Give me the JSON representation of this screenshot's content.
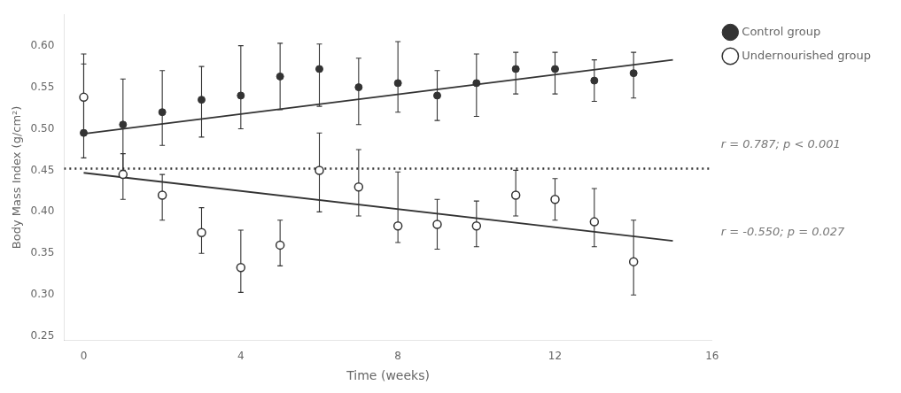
{
  "chart_data": {
    "type": "scatter",
    "xlabel": "Time (weeks)",
    "ylabel": "Body Mass Index (g/cm²)",
    "xlim": [
      -0.5,
      16
    ],
    "ylim": [
      0.245,
      0.638
    ],
    "xticks": [
      0,
      4,
      8,
      12,
      16
    ],
    "yticks": [
      0.25,
      {
        "value": 0.3,
        "label": "0.30"
      },
      0.35,
      {
        "value": 0.4,
        "label": "0.40"
      },
      0.45,
      {
        "value": 0.5,
        "label": "0.50"
      },
      0.55,
      {
        "value": 0.6,
        "label": "0.60"
      }
    ],
    "grid": false,
    "legend": "right",
    "series": [
      {
        "name": "Control group",
        "color": "#333333",
        "marker": "circle",
        "x": [
          0,
          1,
          2,
          3,
          4,
          5,
          6,
          7,
          8,
          9,
          10,
          11,
          12,
          13,
          14
        ],
        "values": [
          0.495,
          0.505,
          0.52,
          0.535,
          0.54,
          0.563,
          0.572,
          0.55,
          0.555,
          0.54,
          0.555,
          0.572,
          0.572,
          0.558,
          0.567
        ],
        "yerr_lo": [
          0.03,
          0.055,
          0.04,
          0.045,
          0.04,
          0.04,
          0.045,
          0.045,
          0.035,
          0.03,
          0.04,
          0.03,
          0.03,
          0.025,
          0.03
        ],
        "yerr_hi": [
          0.095,
          0.055,
          0.05,
          0.04,
          0.06,
          0.04,
          0.03,
          0.035,
          0.05,
          0.03,
          0.035,
          0.02,
          0.02,
          0.025,
          0.025
        ]
      },
      {
        "name": "Undernourished group",
        "color": "#333333",
        "marker": "open_circle",
        "x": [
          0,
          1,
          2,
          3,
          4,
          5,
          6,
          7,
          8,
          9,
          10,
          11,
          12,
          13,
          14
        ],
        "values": [
          0.538,
          0.445,
          0.42,
          0.375,
          0.333,
          0.36,
          0.45,
          0.43,
          0.383,
          0.385,
          0.383,
          0.42,
          0.415,
          0.388,
          0.34
        ],
        "yerr_lo": [
          0.04,
          0.03,
          0.03,
          0.025,
          0.03,
          0.025,
          0.05,
          0.035,
          0.02,
          0.03,
          0.025,
          0.025,
          0.025,
          0.03,
          0.04
        ],
        "yerr_hi": [
          0.04,
          0.025,
          0.025,
          0.03,
          0.045,
          0.03,
          0.045,
          0.045,
          0.065,
          0.03,
          0.03,
          0.03,
          0.025,
          0.04,
          0.05
        ]
      }
    ],
    "trend_lines": [
      {
        "x": [
          0,
          15
        ],
        "values": [
          0.494,
          0.583
        ],
        "color": "#333333",
        "line_style": "solid"
      },
      {
        "x": [
          0,
          15
        ],
        "values": [
          0.447,
          0.365
        ],
        "color": "#333333",
        "line_style": "solid"
      }
    ],
    "reference_line": {
      "y": 0.452,
      "color": "#333333",
      "line_style": "dotted"
    },
    "annotations": [
      {
        "text": "r = 0.787; p < 0.001",
        "color": "#777777"
      },
      {
        "text": "r = -0.550; p = 0.027",
        "color": "#777777"
      }
    ]
  }
}
